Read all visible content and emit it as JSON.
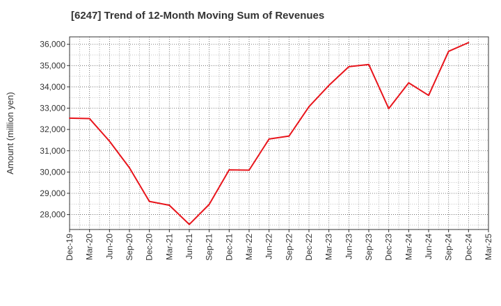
{
  "chart_data": {
    "type": "line",
    "title": "[6247]  Trend of 12-Month Moving Sum of Revenues",
    "xlabel": "",
    "ylabel": "Amount (million yen)",
    "ylim": [
      27300,
      36350
    ],
    "yticks": [
      28000,
      29000,
      30000,
      31000,
      32000,
      33000,
      34000,
      35000,
      36000
    ],
    "ytick_labels": [
      "28,000",
      "29,000",
      "30,000",
      "31,000",
      "32,000",
      "33,000",
      "34,000",
      "35,000",
      "36,000"
    ],
    "xtick_labels": [
      "Dec-19",
      "Mar-20",
      "Jun-20",
      "Sep-20",
      "Dec-20",
      "Mar-21",
      "Jun-21",
      "Sep-21",
      "Dec-21",
      "Mar-22",
      "Jun-22",
      "Sep-22",
      "Dec-22",
      "Mar-23",
      "Jun-23",
      "Sep-23",
      "Dec-23",
      "Mar-24",
      "Jun-24",
      "Sep-24",
      "Dec-24",
      "Mar-25"
    ],
    "grid": true,
    "series": [
      {
        "color": "#e8141b",
        "x": [
          "Dec-19",
          "Mar-20",
          "Jun-20",
          "Sep-20",
          "Dec-20",
          "Mar-21",
          "Jun-21",
          "Sep-21",
          "Dec-21",
          "Mar-22",
          "Jun-22",
          "Sep-22",
          "Dec-22",
          "Mar-23",
          "Jun-23",
          "Sep-23",
          "Dec-23",
          "Mar-24",
          "Jun-24",
          "Sep-24",
          "Dec-24"
        ],
        "values": [
          32530,
          32510,
          31450,
          30200,
          28620,
          28440,
          27540,
          28480,
          30100,
          30090,
          31550,
          31690,
          33070,
          34070,
          34950,
          35050,
          32980,
          34190,
          33600,
          35670,
          36080
        ]
      }
    ]
  }
}
